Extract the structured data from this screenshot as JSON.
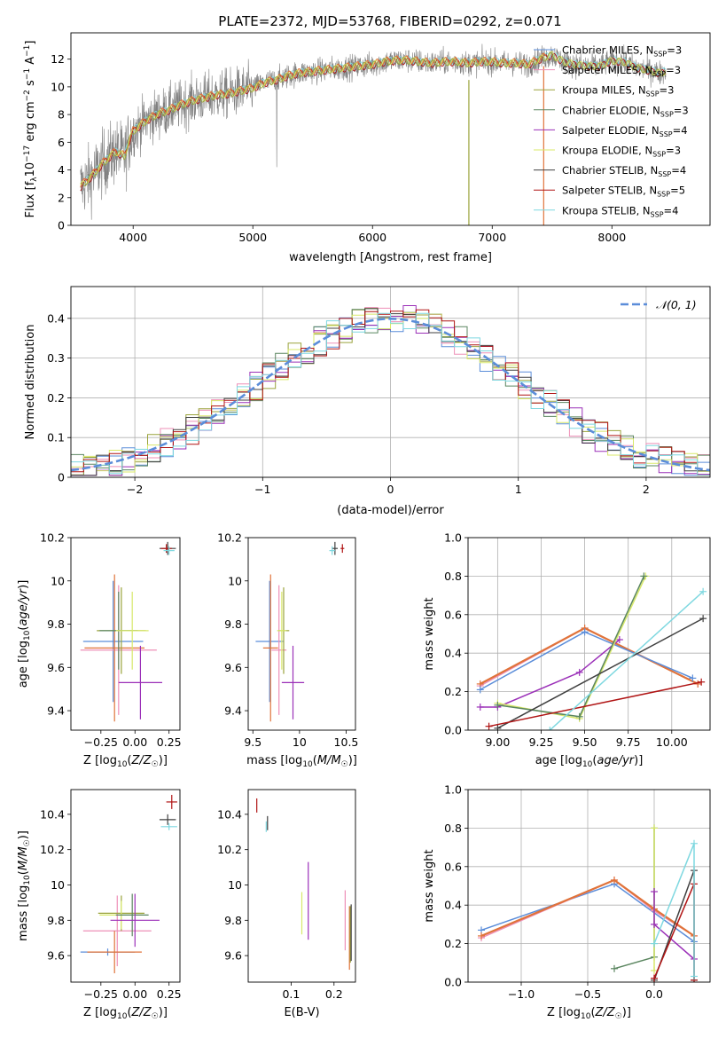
{
  "figure_title": "PLATE=2372, MJD=53768, FIBERID=0292, z=0.071",
  "colors": {
    "chabrier_miles": "#5b8dd9",
    "salpeter_miles": "#ee8fb7",
    "kroupa_miles": "#9aa33c",
    "chabrier_elodie": "#5b8660",
    "salpeter_elodie": "#9b30b8",
    "kroupa_elodie": "#d8e86a",
    "chabrier_stelib": "#404040",
    "salpeter_stelib": "#b01414",
    "kroupa_stelib": "#7fd8e0",
    "orange": "#e0733a",
    "grey_spectrum": "#808080",
    "normal_curve": "#5b8dd9"
  },
  "chart_data": [
    {
      "id": "spectrum",
      "type": "line",
      "title": "PLATE=2372, MJD=53768, FIBERID=0292, z=0.071",
      "xlabel": "wavelength [Angstrom, rest frame]",
      "ylabel": "Flux [f_λ 10^-17 erg cm^-2 s^-1 A^-1]",
      "xlim": [
        3480,
        8820
      ],
      "ylim": [
        0,
        13.9
      ],
      "xticks": [
        4000,
        5000,
        6000,
        7000,
        8000
      ],
      "yticks": [
        0,
        2,
        4,
        6,
        8,
        10,
        12
      ],
      "legend_position": "right",
      "legend": [
        "Chabrier MILES, N_SSP=3",
        "Salpeter MILES, N_SSP=3",
        "Kroupa MILES, N_SSP=3",
        "Chabrier ELODIE, N_SSP=3",
        "Salpeter ELODIE, N_SSP=4",
        "Kroupa ELODIE, N_SSP=3",
        "Chabrier STELIB, N_SSP=4",
        "Salpeter STELIB, N_SSP=5",
        "Kroupa STELIB, N_SSP=4"
      ],
      "continuum": {
        "x": [
          3560,
          3650,
          3750,
          3850,
          3930,
          3970,
          4000,
          4100,
          4200,
          4300,
          4400,
          4500,
          4600,
          4700,
          4800,
          4900,
          5000,
          5100,
          5200,
          5300,
          5400,
          5500,
          5600,
          5700,
          5800,
          5900,
          6000,
          6100,
          6200,
          6300,
          6400,
          6500,
          6600,
          6700,
          6800,
          6900,
          7000,
          7100,
          7200,
          7300,
          7400,
          7500,
          7600,
          7700,
          7800,
          7900,
          8000,
          8100,
          8200,
          8300,
          8400,
          8450
        ],
        "y": [
          2.8,
          3.5,
          4.5,
          5.3,
          5.0,
          6.2,
          6.8,
          7.5,
          8.0,
          8.3,
          8.7,
          9.0,
          9.2,
          9.4,
          9.5,
          9.7,
          9.9,
          10.3,
          10.5,
          10.8,
          11.0,
          11.1,
          11.2,
          11.3,
          11.4,
          11.5,
          11.6,
          11.8,
          11.9,
          11.9,
          11.8,
          11.7,
          11.8,
          11.8,
          11.7,
          11.8,
          11.8,
          11.7,
          11.7,
          11.6,
          12.0,
          12.3,
          11.8,
          11.6,
          11.5,
          11.5,
          11.9,
          11.8,
          11.4,
          11.2,
          11.0,
          11.1
        ]
      }
    },
    {
      "id": "residuals",
      "type": "histogram",
      "xlabel": "(data-model)/error",
      "ylabel": "Normed distribution",
      "xlim": [
        -2.5,
        2.5
      ],
      "ylim": [
        0,
        0.48
      ],
      "xticks": [
        -2,
        -1,
        0,
        1,
        2
      ],
      "yticks": [
        0.0,
        0.1,
        0.2,
        0.3,
        0.4
      ],
      "grid": true,
      "legend_position": "top-right",
      "legend": [
        "𝒩(0, 1)"
      ],
      "bins": [
        -2.5,
        -2.4,
        -2.3,
        -2.2,
        -2.1,
        -2.0,
        -1.9,
        -1.8,
        -1.7,
        -1.6,
        -1.5,
        -1.4,
        -1.3,
        -1.2,
        -1.1,
        -1.0,
        -0.9,
        -0.8,
        -0.7,
        -0.6,
        -0.5,
        -0.4,
        -0.3,
        -0.2,
        -0.1,
        0.0,
        0.1,
        0.2,
        0.3,
        0.4,
        0.5,
        0.6,
        0.7,
        0.8,
        0.9,
        1.0,
        1.1,
        1.2,
        1.3,
        1.4,
        1.5,
        1.6,
        1.7,
        1.8,
        1.9,
        2.0,
        2.1,
        2.2,
        2.3,
        2.4,
        2.5
      ]
    },
    {
      "id": "age-z",
      "type": "errorbar",
      "xlabel": "Z [log10(Z/Z☉)]",
      "ylabel": "age [log10(age/yr)]",
      "xlim": [
        -0.47,
        0.33
      ],
      "ylim": [
        9.31,
        10.2
      ],
      "xticks": [
        -0.25,
        0.0,
        0.25
      ],
      "xtick_labels": [
        "−0.25",
        "0.00",
        "0.25"
      ],
      "yticks": [
        9.4,
        9.6,
        9.8,
        10.0,
        10.2
      ],
      "points": [
        {
          "model": "chabrier_miles",
          "x": -0.16,
          "y": 9.72,
          "xerr": 0.22,
          "yerr": 0.28
        },
        {
          "model": "salpeter_miles",
          "x": -0.12,
          "y": 9.68,
          "xerr": 0.28,
          "yerr": 0.3
        },
        {
          "model": "orange",
          "x": -0.15,
          "y": 9.69,
          "xerr": 0.22,
          "yerr": 0.34
        },
        {
          "model": "kroupa_miles",
          "x": -0.1,
          "y": 9.77,
          "xerr": 0.18,
          "yerr": 0.2
        },
        {
          "model": "chabrier_elodie",
          "x": -0.12,
          "y": 9.77,
          "xerr": 0.14,
          "yerr": 0.18
        },
        {
          "model": "kroupa_elodie",
          "x": -0.02,
          "y": 9.77,
          "xerr": 0.12,
          "yerr": 0.18
        },
        {
          "model": "salpeter_elodie",
          "x": 0.04,
          "y": 9.53,
          "xerr": 0.16,
          "yerr": 0.17
        },
        {
          "model": "chabrier_stelib",
          "x": 0.24,
          "y": 10.15,
          "xerr": 0.06,
          "yerr": 0.03
        },
        {
          "model": "salpeter_stelib",
          "x": 0.23,
          "y": 10.15,
          "xerr": 0.04,
          "yerr": 0.02
        },
        {
          "model": "kroupa_stelib",
          "x": 0.25,
          "y": 10.14,
          "xerr": 0.04,
          "yerr": 0.02
        }
      ]
    },
    {
      "id": "age-mass",
      "type": "errorbar",
      "xlabel": "mass [log10(M/M☉)]",
      "ylabel": "",
      "xlim": [
        9.45,
        10.6
      ],
      "ylim": [
        9.31,
        10.2
      ],
      "xticks": [
        9.5,
        10.0,
        10.5
      ],
      "yticks": [
        9.4,
        9.6,
        9.8,
        10.0,
        10.2
      ],
      "points": [
        {
          "model": "chabrier_miles",
          "x": 9.68,
          "y": 9.72,
          "xerr": 0.15,
          "yerr": 0.28
        },
        {
          "model": "salpeter_miles",
          "x": 9.78,
          "y": 9.68,
          "xerr": 0.08,
          "yerr": 0.3
        },
        {
          "model": "orange",
          "x": 9.69,
          "y": 9.69,
          "xerr": 0.08,
          "yerr": 0.34
        },
        {
          "model": "kroupa_miles",
          "x": 9.83,
          "y": 9.77,
          "xerr": 0.06,
          "yerr": 0.2
        },
        {
          "model": "kroupa_elodie",
          "x": 9.81,
          "y": 9.77,
          "xerr": 0.05,
          "yerr": 0.18
        },
        {
          "model": "salpeter_elodie",
          "x": 9.93,
          "y": 9.53,
          "xerr": 0.12,
          "yerr": 0.17
        },
        {
          "model": "chabrier_stelib",
          "x": 10.38,
          "y": 10.15,
          "xerr": 0.03,
          "yerr": 0.03
        },
        {
          "model": "salpeter_stelib",
          "x": 10.46,
          "y": 10.15,
          "xerr": 0.02,
          "yerr": 0.02
        },
        {
          "model": "kroupa_stelib",
          "x": 10.35,
          "y": 10.14,
          "xerr": 0.03,
          "yerr": 0.02
        }
      ]
    },
    {
      "id": "weight-age",
      "type": "line",
      "xlabel": "age [log10(age/yr)]",
      "ylabel": "mass weight",
      "xlim": [
        8.83,
        10.22
      ],
      "ylim": [
        0.0,
        1.0
      ],
      "xticks": [
        9.0,
        9.25,
        9.5,
        9.75,
        10.0
      ],
      "xtick_labels": [
        "9.00",
        "9.25",
        "9.50",
        "9.75",
        "10.00"
      ],
      "yticks": [
        0.0,
        0.2,
        0.4,
        0.6,
        0.8,
        1.0
      ],
      "ytick_labels": [
        "0.0",
        "0.2",
        "0.4",
        "0.6",
        "0.8",
        "1.0"
      ],
      "grid": true,
      "series": [
        {
          "model": "salpeter_miles",
          "x": [
            8.9,
            9.5,
            10.15
          ],
          "y": [
            0.23,
            0.53,
            0.24
          ]
        },
        {
          "model": "orange",
          "x": [
            8.9,
            9.5,
            10.15
          ],
          "y": [
            0.24,
            0.53,
            0.24
          ]
        },
        {
          "model": "chabrier_miles",
          "x": [
            8.9,
            9.5,
            10.12
          ],
          "y": [
            0.21,
            0.51,
            0.27
          ]
        },
        {
          "model": "salpeter_elodie",
          "x": [
            8.9,
            9.0,
            9.47,
            9.7
          ],
          "y": [
            0.12,
            0.12,
            0.3,
            0.47
          ]
        },
        {
          "model": "kroupa_elodie",
          "x": [
            9.0,
            9.47,
            9.85
          ],
          "y": [
            0.14,
            0.06,
            0.8
          ]
        },
        {
          "model": "chabrier_elodie",
          "x": [
            9.0,
            9.47,
            9.84
          ],
          "y": [
            0.13,
            0.07,
            0.8
          ]
        },
        {
          "model": "chabrier_stelib",
          "x": [
            9.0,
            10.18
          ],
          "y": [
            0.01,
            0.58
          ]
        },
        {
          "model": "salpeter_stelib",
          "x": [
            8.95,
            10.17
          ],
          "y": [
            0.02,
            0.25
          ]
        },
        {
          "model": "kroupa_stelib",
          "x": [
            9.3,
            10.18
          ],
          "y": [
            0.0,
            0.72
          ]
        }
      ]
    },
    {
      "id": "mass-z",
      "type": "errorbar",
      "xlabel": "Z [log10(Z/Z☉)]",
      "ylabel": "mass [log10(M/M☉)]",
      "xlim": [
        -0.47,
        0.33
      ],
      "ylim": [
        9.45,
        10.54
      ],
      "xticks": [
        -0.25,
        0.0,
        0.25
      ],
      "xtick_labels": [
        "−0.25",
        "0.00",
        "0.25"
      ],
      "yticks": [
        9.6,
        9.8,
        10.0,
        10.2,
        10.4
      ],
      "points": [
        {
          "model": "chabrier_miles",
          "x": -0.2,
          "y": 9.62,
          "xerr": 0.2,
          "yerr": 0.02
        },
        {
          "model": "salpeter_miles",
          "x": -0.13,
          "y": 9.74,
          "xerr": 0.25,
          "yerr": 0.2
        },
        {
          "model": "orange",
          "x": -0.15,
          "y": 9.62,
          "xerr": 0.2,
          "yerr": 0.12
        },
        {
          "model": "kroupa_miles",
          "x": -0.1,
          "y": 9.84,
          "xerr": 0.17,
          "yerr": 0.1
        },
        {
          "model": "kroupa_elodie",
          "x": -0.1,
          "y": 9.83,
          "xerr": 0.16,
          "yerr": 0.08
        },
        {
          "model": "chabrier_elodie",
          "x": -0.02,
          "y": 9.83,
          "xerr": 0.12,
          "yerr": 0.12
        },
        {
          "model": "salpeter_elodie",
          "x": 0.0,
          "y": 9.8,
          "xerr": 0.18,
          "yerr": 0.15
        },
        {
          "model": "chabrier_stelib",
          "x": 0.24,
          "y": 10.37,
          "xerr": 0.06,
          "yerr": 0.03
        },
        {
          "model": "salpeter_stelib",
          "x": 0.27,
          "y": 10.47,
          "xerr": 0.04,
          "yerr": 0.04
        },
        {
          "model": "kroupa_stelib",
          "x": 0.25,
          "y": 10.33,
          "xerr": 0.06,
          "yerr": 0.02
        }
      ]
    },
    {
      "id": "mass-ebv",
      "type": "errorbar",
      "xlabel": "E(B-V)",
      "ylabel": "",
      "xlim": [
        0.0,
        0.25
      ],
      "ylim": [
        9.45,
        10.54
      ],
      "xticks": [
        0.1,
        0.2
      ],
      "yticks": [
        9.6,
        9.8,
        10.0,
        10.2,
        10.4
      ],
      "points": [
        {
          "model": "salpeter_stelib",
          "x": 0.02,
          "y": 10.45,
          "xerr": 0.0,
          "yerr": 0.04
        },
        {
          "model": "chabrier_stelib",
          "x": 0.045,
          "y": 10.35,
          "xerr": 0.0,
          "yerr": 0.04
        },
        {
          "model": "kroupa_stelib",
          "x": 0.042,
          "y": 10.33,
          "xerr": 0.0,
          "yerr": 0.03
        },
        {
          "model": "kroupa_elodie",
          "x": 0.125,
          "y": 9.84,
          "xerr": 0.0,
          "yerr": 0.12
        },
        {
          "model": "salpeter_elodie",
          "x": 0.14,
          "y": 9.91,
          "xerr": 0.0,
          "yerr": 0.22
        },
        {
          "model": "salpeter_miles",
          "x": 0.226,
          "y": 9.8,
          "xerr": 0.0,
          "yerr": 0.17
        },
        {
          "model": "orange",
          "x": 0.236,
          "y": 9.7,
          "xerr": 0.0,
          "yerr": 0.18
        },
        {
          "model": "kroupa_miles",
          "x": 0.238,
          "y": 9.72,
          "xerr": 0.0,
          "yerr": 0.16
        },
        {
          "model": "chabrier_stelib",
          "x": 0.24,
          "y": 9.73,
          "xerr": 0.0,
          "yerr": 0.16
        }
      ]
    },
    {
      "id": "weight-z",
      "type": "line",
      "xlabel": "Z [log10(Z/Z☉)]",
      "ylabel": "mass weight",
      "xlim": [
        -1.4,
        0.42
      ],
      "ylim": [
        0.0,
        1.0
      ],
      "xticks": [
        -1.0,
        -0.5,
        0.0
      ],
      "xtick_labels": [
        "−1.0",
        "−0.5",
        "0.0"
      ],
      "yticks": [
        0.0,
        0.2,
        0.4,
        0.6,
        0.8,
        1.0
      ],
      "ytick_labels": [
        "0.0",
        "0.2",
        "0.4",
        "0.6",
        "0.8",
        "1.0"
      ],
      "grid": true,
      "series": [
        {
          "model": "chabrier_miles",
          "x": [
            -1.3,
            -0.3,
            0.3
          ],
          "y": [
            0.27,
            0.51,
            0.21
          ]
        },
        {
          "model": "salpeter_miles",
          "x": [
            -1.3,
            -0.3,
            0.0,
            0.3
          ],
          "y": [
            0.23,
            0.53,
            0.37,
            0.24
          ]
        },
        {
          "model": "orange",
          "x": [
            -1.3,
            -0.3,
            0.0,
            0.3
          ],
          "y": [
            0.24,
            0.53,
            0.38,
            0.24
          ]
        },
        {
          "model": "chabrier_elodie",
          "x": [
            -0.3,
            0.0,
            0.0
          ],
          "y": [
            0.07,
            0.13,
            0.8
          ]
        },
        {
          "model": "kroupa_elodie",
          "x": [
            0.0,
            0.0
          ],
          "y": [
            0.06,
            0.8
          ]
        },
        {
          "model": "salpeter_elodie",
          "x": [
            0.0,
            0.0,
            0.3
          ],
          "y": [
            0.47,
            0.3,
            0.12
          ]
        },
        {
          "model": "chabrier_stelib",
          "x": [
            0.0,
            0.3,
            0.3
          ],
          "y": [
            0.01,
            0.58,
            0.01
          ]
        },
        {
          "model": "salpeter_stelib",
          "x": [
            0.0,
            0.3,
            0.3
          ],
          "y": [
            0.02,
            0.51,
            0.01
          ]
        },
        {
          "model": "kroupa_stelib",
          "x": [
            0.0,
            0.3,
            0.3
          ],
          "y": [
            0.2,
            0.72,
            0.03
          ]
        }
      ]
    }
  ]
}
